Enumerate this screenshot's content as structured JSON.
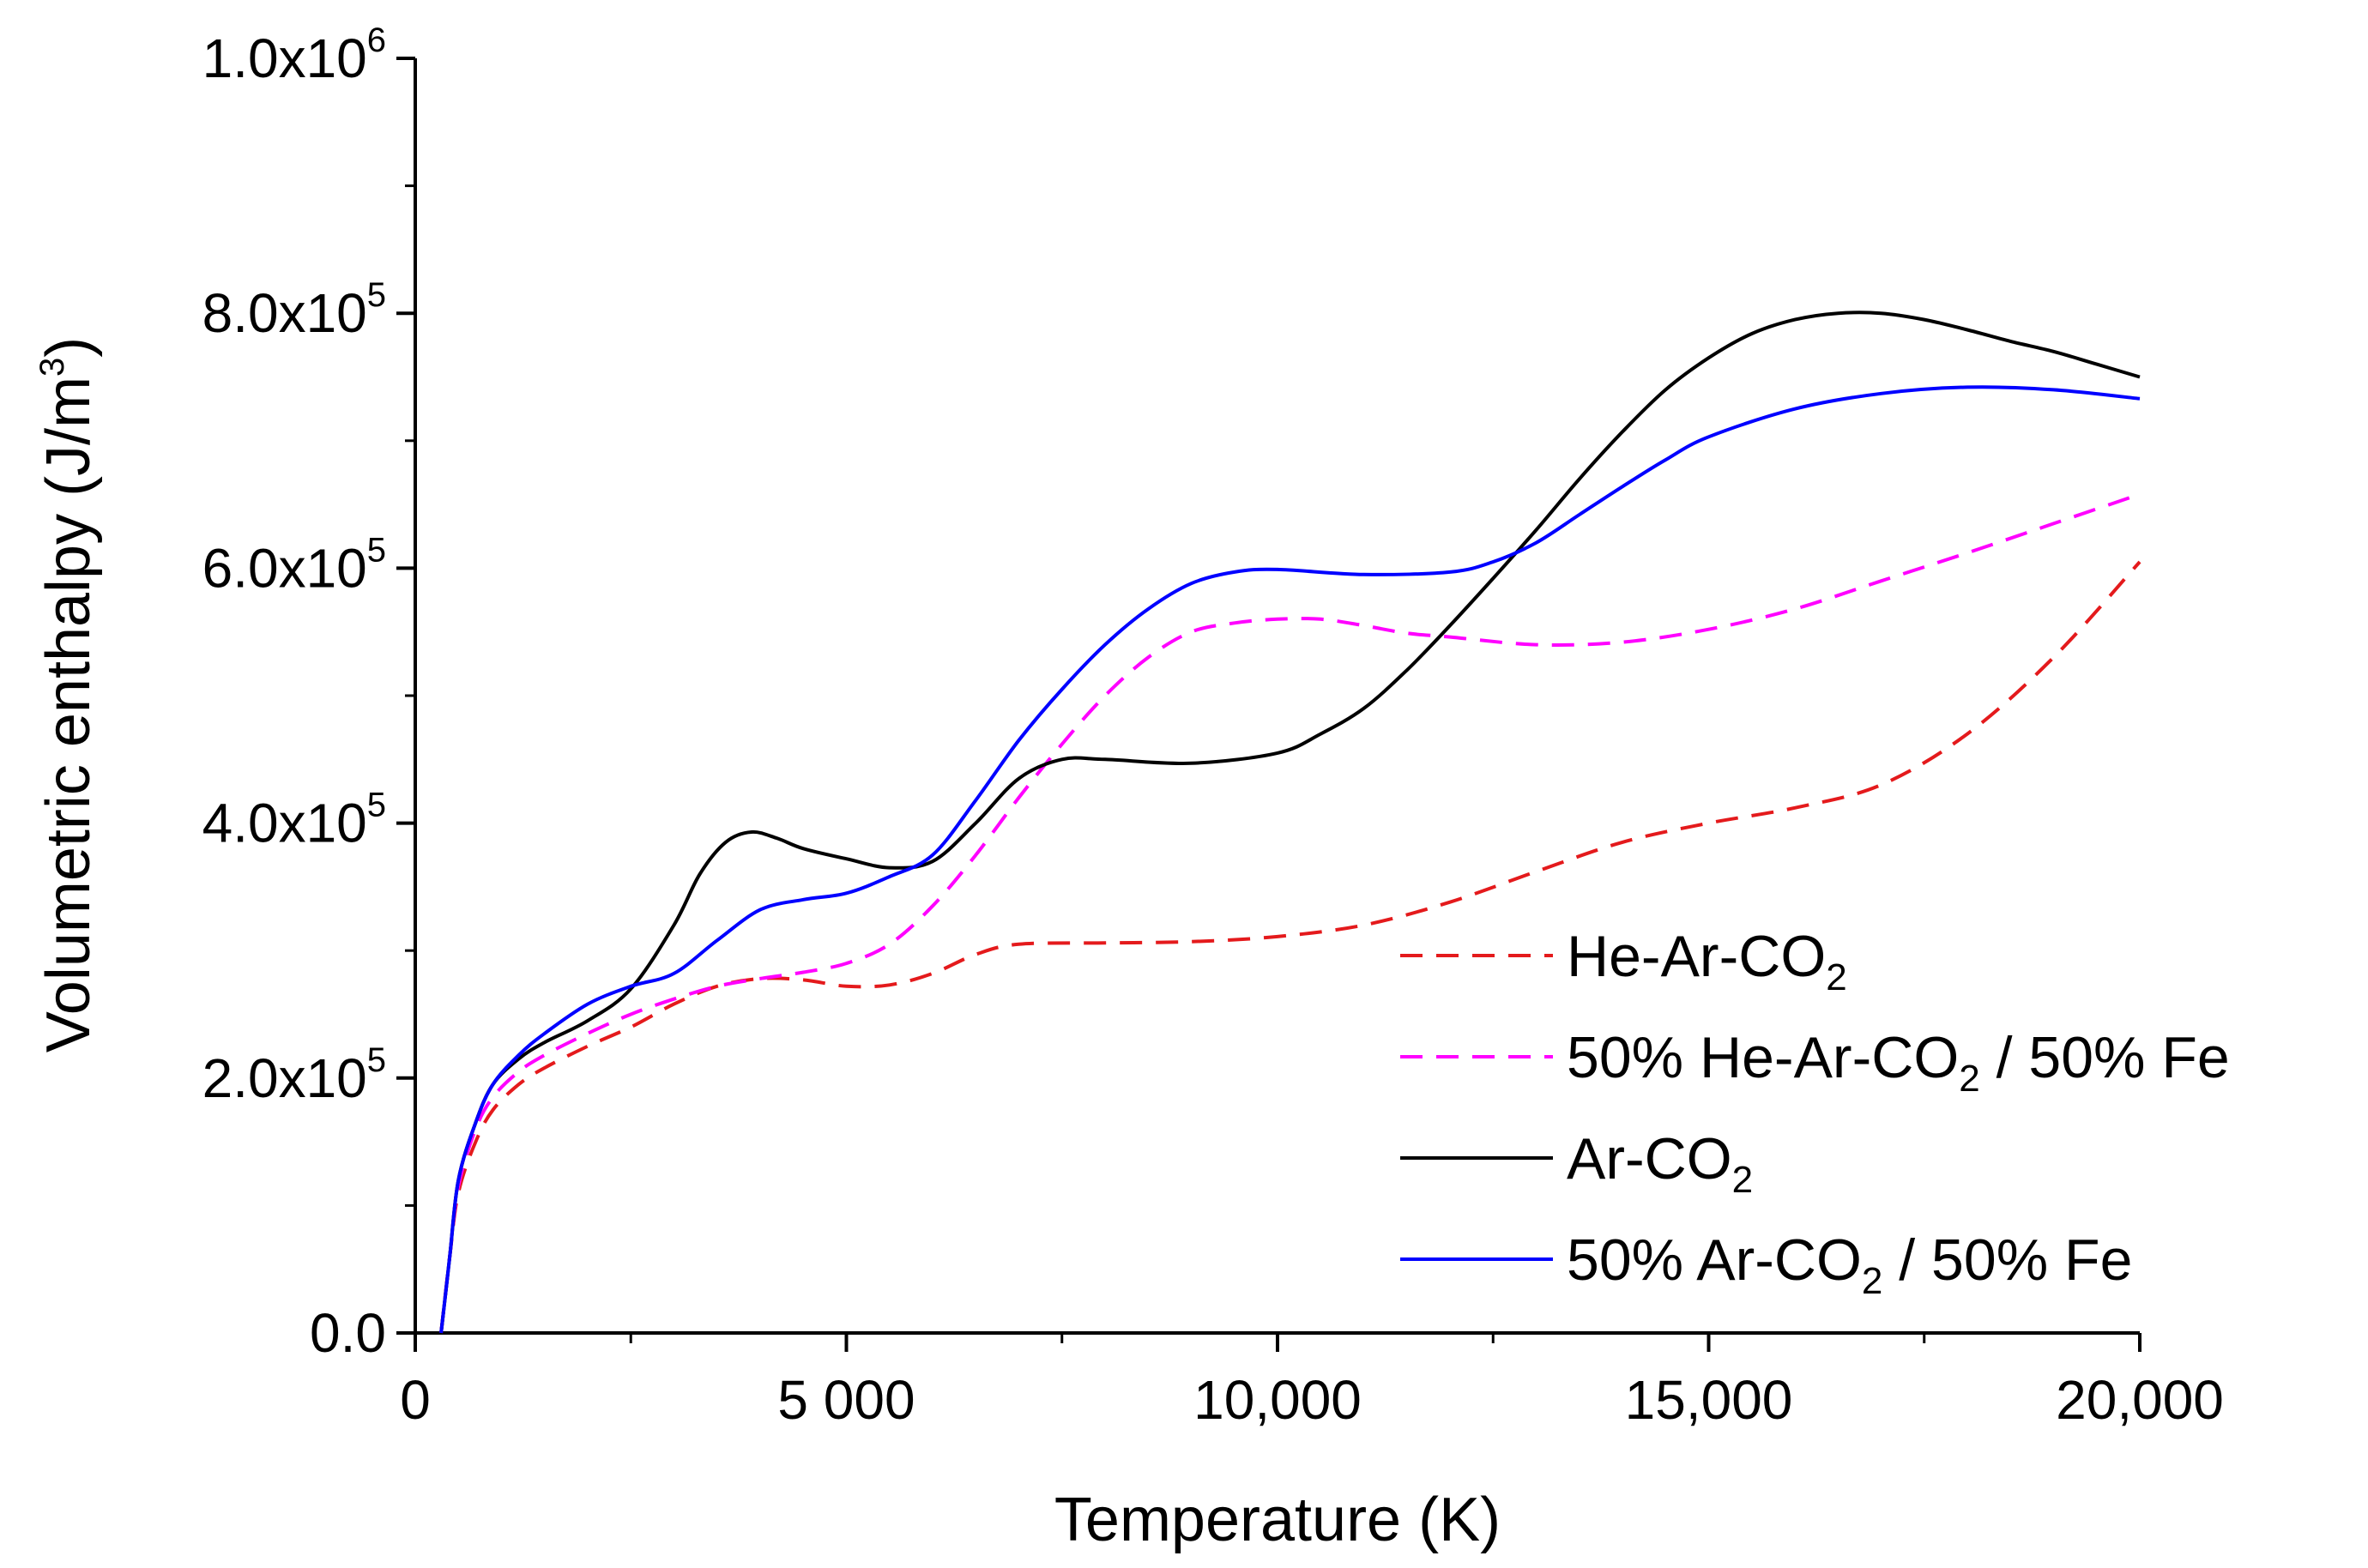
{
  "chart_data": {
    "type": "line",
    "title": "",
    "xlabel": "Temperature (K)",
    "ylabel": "Volumetric enthalpy (J/m3)",
    "ylabel_parts": {
      "main": "Volumetric enthalpy (J/m",
      "sup": "3",
      "close": ")"
    },
    "xlim": [
      0,
      20000
    ],
    "ylim": [
      0,
      1000000
    ],
    "grid": false,
    "legend_position": "bottom-right",
    "x_ticks": [
      {
        "value": 0,
        "label": "0"
      },
      {
        "value": 5000,
        "label": "5 000"
      },
      {
        "value": 10000,
        "label": "10,000"
      },
      {
        "value": 15000,
        "label": "15,000"
      },
      {
        "value": 20000,
        "label": "20,000"
      }
    ],
    "y_ticks": [
      {
        "value": 0,
        "label": "0.0",
        "sup": ""
      },
      {
        "value": 200000,
        "label": "2.0x10",
        "sup": "5"
      },
      {
        "value": 400000,
        "label": "4.0x10",
        "sup": "5"
      },
      {
        "value": 600000,
        "label": "6.0x10",
        "sup": "5"
      },
      {
        "value": 800000,
        "label": "8.0x10",
        "sup": "5"
      },
      {
        "value": 1000000,
        "label": "1.0x10",
        "sup": "6"
      }
    ],
    "series": [
      {
        "name": "He-Ar-CO2",
        "label_parts": [
          "He-Ar-CO",
          "2",
          ""
        ],
        "color": "#e41a1c",
        "dash": "dashed",
        "x": [
          300,
          400,
          500,
          700,
          900,
          1200,
          1500,
          2000,
          2500,
          3000,
          3500,
          4000,
          4500,
          5000,
          5500,
          6000,
          6500,
          7000,
          8000,
          9000,
          10000,
          11000,
          12000,
          13000,
          14000,
          15000,
          16000,
          17000,
          18000,
          19000,
          20000
        ],
        "y": [
          0,
          60000,
          110000,
          150000,
          175000,
          195000,
          208000,
          225000,
          240000,
          258000,
          272000,
          278000,
          277000,
          272000,
          273000,
          282000,
          297000,
          305000,
          306000,
          307000,
          311000,
          320000,
          338000,
          362000,
          385000,
          400000,
          412000,
          430000,
          470000,
          530000,
          605000
        ]
      },
      {
        "name": "50% He-Ar-CO2 / 50% Fe",
        "label_parts": [
          "50% He-Ar-CO",
          "2",
          " / 50% Fe"
        ],
        "color": "#ff00ff",
        "dash": "dashed",
        "x": [
          300,
          400,
          500,
          700,
          900,
          1200,
          1500,
          2000,
          2500,
          3000,
          3500,
          4000,
          4500,
          5000,
          5500,
          6000,
          6500,
          7000,
          7500,
          8000,
          8500,
          9000,
          9500,
          10000,
          10500,
          11000,
          11500,
          12000,
          13000,
          14000,
          15000,
          16000,
          17000,
          18000,
          19000,
          20000
        ],
        "y": [
          0,
          60000,
          115000,
          160000,
          185000,
          205000,
          218000,
          235000,
          250000,
          262000,
          272000,
          278000,
          283000,
          290000,
          305000,
          335000,
          375000,
          420000,
          462000,
          500000,
          530000,
          550000,
          557000,
          560000,
          560000,
          555000,
          549000,
          546000,
          540000,
          542000,
          552000,
          568000,
          590000,
          612000,
          635000,
          658000
        ]
      },
      {
        "name": "Ar-CO2",
        "label_parts": [
          "Ar-CO",
          "2",
          ""
        ],
        "color": "#000000",
        "dash": "solid",
        "x": [
          300,
          400,
          500,
          700,
          900,
          1200,
          1500,
          2000,
          2500,
          3000,
          3300,
          3600,
          3900,
          4200,
          4500,
          5000,
          5500,
          6000,
          6500,
          7000,
          7500,
          8000,
          9000,
          10000,
          10500,
          11000,
          11500,
          12000,
          12500,
          13000,
          13500,
          14000,
          14500,
          15000,
          15500,
          16000,
          16500,
          17000,
          17500,
          18000,
          18500,
          19000,
          19500,
          20000
        ],
        "y": [
          0,
          60000,
          120000,
          165000,
          195000,
          215000,
          228000,
          245000,
          270000,
          320000,
          360000,
          385000,
          393000,
          388000,
          380000,
          372000,
          365000,
          370000,
          400000,
          435000,
          450000,
          450000,
          447000,
          455000,
          470000,
          490000,
          520000,
          555000,
          592000,
          630000,
          670000,
          707000,
          740000,
          765000,
          784000,
          795000,
          800000,
          800000,
          795000,
          787000,
          778000,
          770000,
          760000,
          750000
        ]
      },
      {
        "name": "50% Ar-CO2 / 50% Fe",
        "label_parts": [
          "50% Ar-CO",
          "2",
          " / 50% Fe"
        ],
        "color": "#0000ff",
        "dash": "solid",
        "x": [
          300,
          400,
          500,
          700,
          900,
          1200,
          1500,
          2000,
          2500,
          3000,
          3500,
          4000,
          4500,
          5000,
          5500,
          6000,
          6500,
          7000,
          7500,
          8000,
          8500,
          9000,
          9500,
          10000,
          11000,
          12000,
          12500,
          13000,
          13500,
          14000,
          14500,
          15000,
          16000,
          17000,
          18000,
          19000,
          20000
        ],
        "y": [
          0,
          60000,
          120000,
          165000,
          195000,
          218000,
          235000,
          258000,
          272000,
          282000,
          308000,
          332000,
          340000,
          345000,
          358000,
          375000,
          418000,
          465000,
          505000,
          540000,
          568000,
          588000,
          597000,
          599000,
          595000,
          597000,
          605000,
          620000,
          642000,
          664000,
          685000,
          703000,
          725000,
          737000,
          742000,
          740000,
          733000
        ]
      }
    ]
  }
}
